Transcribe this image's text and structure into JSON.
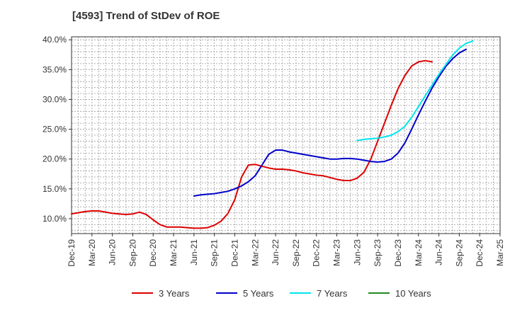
{
  "chart_data": {
    "type": "line",
    "title": "[4593]  Trend of StDev of ROE",
    "xlabel": "",
    "ylabel": "",
    "ylim": [
      7.5,
      40.5
    ],
    "y_ticks": [
      10,
      15,
      20,
      25,
      30,
      35,
      40
    ],
    "y_tick_labels": [
      "10.0%",
      "15.0%",
      "20.0%",
      "25.0%",
      "30.0%",
      "35.0%",
      "40.0%"
    ],
    "x_tick_labels": [
      "Dec-19",
      "Mar-20",
      "Jun-20",
      "Sep-20",
      "Dec-20",
      "Mar-21",
      "Jun-21",
      "Sep-21",
      "Dec-21",
      "Mar-22",
      "Jun-22",
      "Sep-22",
      "Dec-22",
      "Mar-23",
      "Jun-23",
      "Sep-23",
      "Dec-23",
      "Mar-24",
      "Jun-24",
      "Sep-24",
      "Dec-24",
      "Mar-25"
    ],
    "grid": true,
    "legend_position": "bottom",
    "series": [
      {
        "name": "3 Years",
        "color": "#dd0000",
        "start": "Dec-19",
        "values": [
          10.8,
          11.0,
          11.2,
          11.3,
          11.3,
          11.1,
          10.9,
          10.8,
          10.7,
          10.8,
          11.1,
          10.7,
          9.8,
          9.0,
          8.6,
          8.6,
          8.6,
          8.5,
          8.4,
          8.4,
          8.5,
          8.9,
          9.6,
          10.9,
          13.2,
          17.0,
          19.0,
          19.1,
          18.8,
          18.5,
          18.3,
          18.3,
          18.2,
          18.0,
          17.7,
          17.5,
          17.3,
          17.2,
          16.9,
          16.6,
          16.4,
          16.4,
          16.8,
          17.8,
          20.0,
          23.0,
          26.0,
          29.0,
          31.8,
          34.0,
          35.6,
          36.3,
          36.5,
          36.3
        ]
      },
      {
        "name": "5 Years",
        "color": "#0000cc",
        "start": "Jun-21",
        "values": [
          13.8,
          14.0,
          14.1,
          14.2,
          14.4,
          14.6,
          15.0,
          15.5,
          16.2,
          17.2,
          19.0,
          20.8,
          21.5,
          21.5,
          21.2,
          21.0,
          20.8,
          20.6,
          20.4,
          20.2,
          20.0,
          20.0,
          20.1,
          20.1,
          20.0,
          19.8,
          19.6,
          19.5,
          19.6,
          20.0,
          21.0,
          22.7,
          25.0,
          27.4,
          29.7,
          31.9,
          33.8,
          35.5,
          36.8,
          37.8,
          38.4
        ]
      },
      {
        "name": "7 Years",
        "color": "#00e5ee",
        "start": "Jun-23",
        "values": [
          23.1,
          23.3,
          23.4,
          23.5,
          23.7,
          24.0,
          24.6,
          25.5,
          27.0,
          28.8,
          30.6,
          32.4,
          34.2,
          35.8,
          37.4,
          38.6,
          39.4,
          39.8
        ]
      },
      {
        "name": "10 Years",
        "color": "#228b22",
        "start": "Dec-24",
        "values": []
      }
    ]
  }
}
